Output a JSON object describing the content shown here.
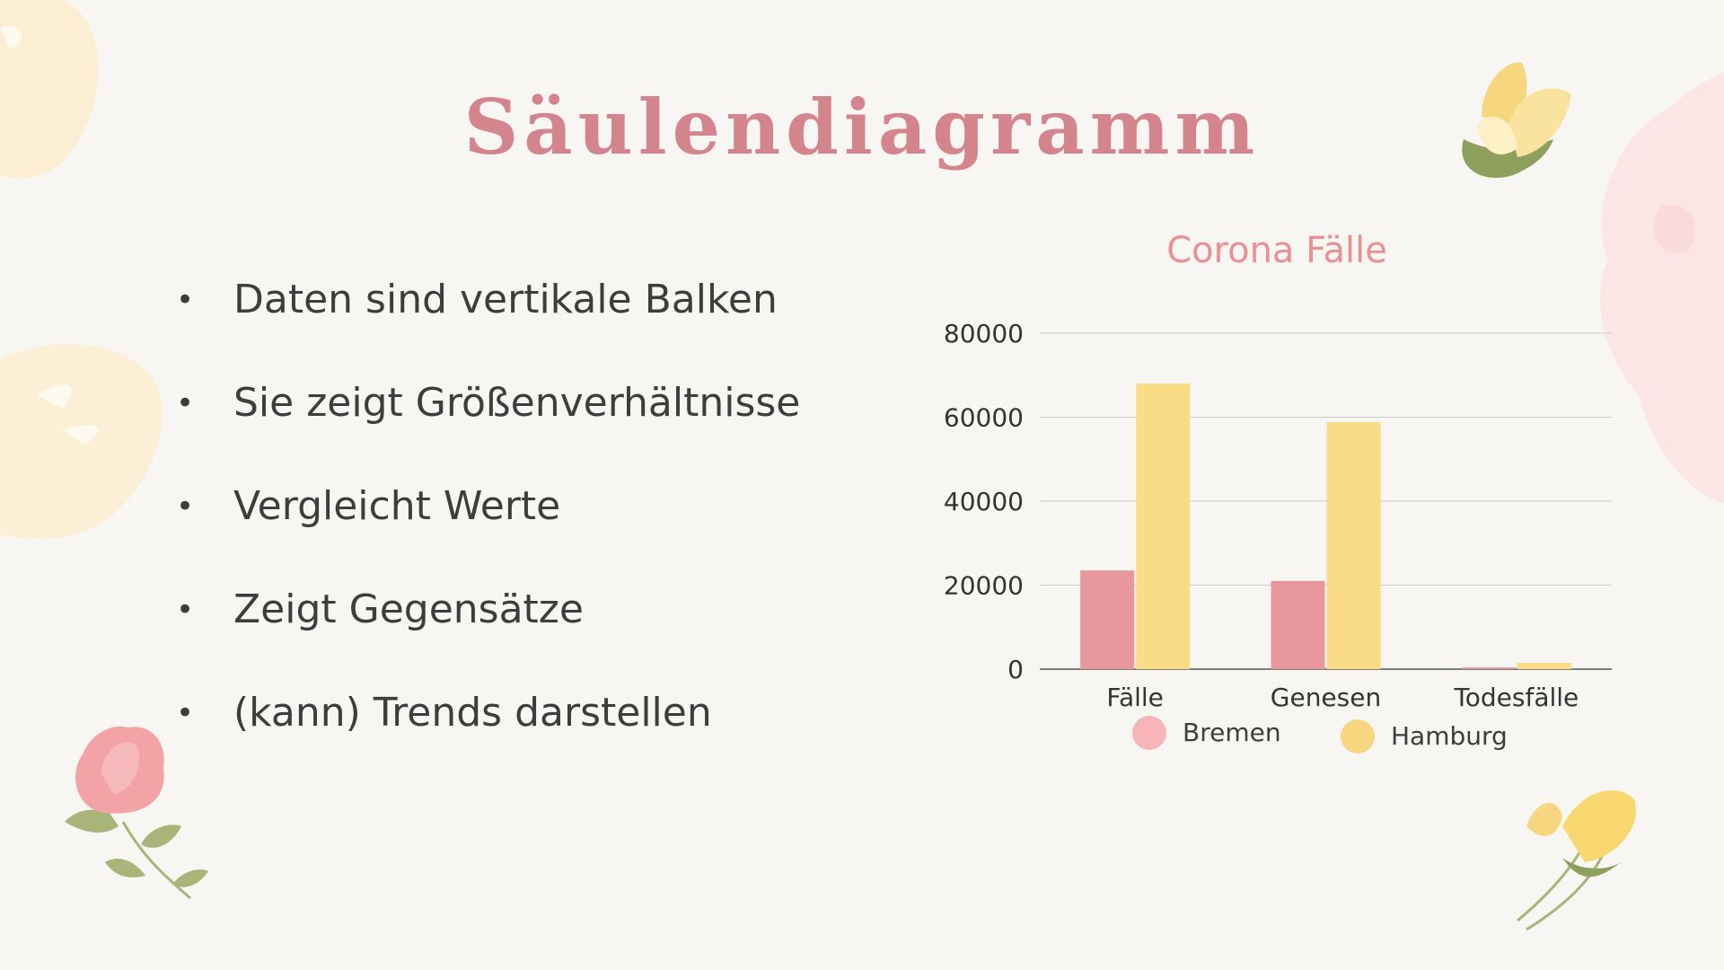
{
  "slide": {
    "title": "Säulendiagramm",
    "bullets": [
      "Daten sind vertikale Balken",
      "Sie zeigt Größenverhältnisse",
      "Vergleicht Werte",
      "Zeigt Gegensätze",
      "(kann) Trends darstellen"
    ]
  },
  "chart_data": {
    "type": "bar",
    "title": "Corona Fälle",
    "categories": [
      "Fälle",
      "Genesen",
      "Todesfälle"
    ],
    "series": [
      {
        "name": "Bremen",
        "values": [
          23500,
          21000,
          400
        ],
        "color": "#e8979c"
      },
      {
        "name": "Hamburg",
        "values": [
          68000,
          58800,
          1500
        ],
        "color": "#fadb86"
      }
    ],
    "ylim": [
      0,
      80000
    ],
    "yticks": [
      0,
      20000,
      40000,
      60000,
      80000
    ],
    "grid": true,
    "legend": "bottom",
    "xlabel": "",
    "ylabel": ""
  },
  "colors": {
    "title": "#d4848c",
    "chart_title": "#ea8f92",
    "legend_bremen": "#f6b6b9",
    "legend_hamburg": "#f7d680"
  }
}
